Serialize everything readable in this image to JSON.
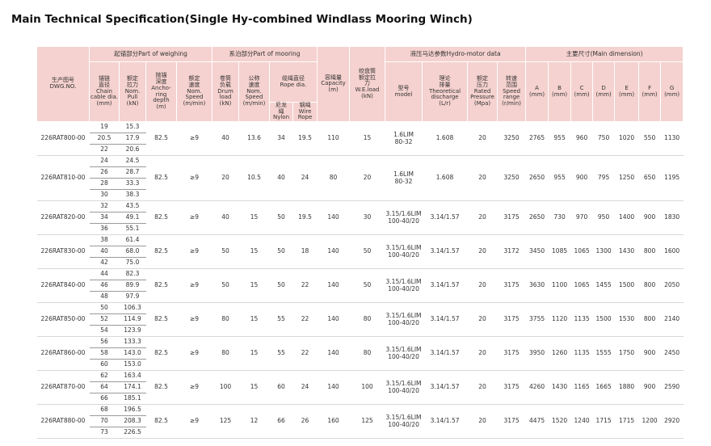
{
  "title": "Main Technical Specification(Single Hy-combined Windlass Mooring Winch)",
  "header": {
    "dwg": "生产图号\nDWG.NO.",
    "weighing": "起锚部分Part of weighing",
    "mooring": "系泊部分Part of mooring",
    "capacity": "容绳量\nCapacity\n(m)",
    "we_load": "绞盘筒\n额定拉\n力\nW.E.load\n(kN)",
    "hydro": "液压马达参数Hydro-motor data",
    "dimension": "主要尺寸(Main dimension)",
    "chain": "锚链\n直径\nChain\ncable dia.\n(mm)",
    "pull": "额定\n拉力\nNom.\nPull\n(kN)",
    "depth": "抛锚\n深度\nAncho-\nring\ndepth\n(m)",
    "w_speed": "额定\n速度\nNom.\nSpeed\n(m/min)",
    "drum": "卷筒\n负载\nDrum\nload\n(kN)",
    "m_speed": "公称\n速度\nNom.\nSpeed\n(m/min)",
    "rope": "缆绳直径\nRope dia.",
    "model": "型号\nmodel",
    "discharge": "理论\n排量\nTheoretical\ndischarge\n(L/r)",
    "pressure": "额定\n压力\nRated\nPressure\n(Mpa)",
    "speed_range": "转速\n范围\nSpeed\nrange\n(r/min)",
    "nylon": "尼龙\n绳\nNylon",
    "wire": "钢绳\nWire\nRope",
    "dims": [
      "A\n(mm)",
      "B\n(mm)",
      "C\n(mm)",
      "D\n(mm)",
      "E\n(mm)",
      "F\n(mm)",
      "G\n(mm)"
    ]
  },
  "rows": [
    {
      "dwg": "226RAT800-00",
      "chain": [
        "19",
        "20.5",
        "22"
      ],
      "pull": [
        "15.3",
        "17.9",
        "20.6"
      ],
      "cells": [
        "82.5",
        "≥9",
        "40",
        "13.6",
        "34",
        "19.5",
        "110",
        "15",
        "1.6LIM\n80-32",
        "1.608",
        "20",
        "3250",
        "2765",
        "955",
        "960",
        "750",
        "1020",
        "550",
        "1130"
      ]
    },
    {
      "dwg": "226RAT810-00",
      "chain": [
        "24",
        "26",
        "28",
        "30"
      ],
      "pull": [
        "24.5",
        "28.7",
        "33.3",
        "38.3"
      ],
      "cells": [
        "82.5",
        "≥9",
        "20",
        "10.5",
        "40",
        "24",
        "80",
        "20",
        "1.6LIM\n80-32",
        "1.608",
        "20",
        "3250",
        "2650",
        "955",
        "900",
        "795",
        "1250",
        "650",
        "1195"
      ]
    },
    {
      "dwg": "226RAT820-00",
      "chain": [
        "32",
        "34",
        "36"
      ],
      "pull": [
        "43.5",
        "49.1",
        "55.1"
      ],
      "cells": [
        "82.5",
        "≥9",
        "40",
        "15",
        "50",
        "19.5",
        "140",
        "30",
        "3.15/1.6LIM\n100-40/20",
        "3.14/1.57",
        "20",
        "3175",
        "2650",
        "730",
        "970",
        "950",
        "1400",
        "900",
        "1830"
      ]
    },
    {
      "dwg": "226RAT830-00",
      "chain": [
        "38",
        "40",
        "42"
      ],
      "pull": [
        "61.4",
        "68.0",
        "75.0"
      ],
      "cells": [
        "82.5",
        "≥9",
        "50",
        "15",
        "50",
        "18",
        "140",
        "50",
        "3.15/1.6LIM\n100-40/20",
        "3.14/1.57",
        "20",
        "3172",
        "3450",
        "1085",
        "1065",
        "1300",
        "1430",
        "800",
        "1600"
      ]
    },
    {
      "dwg": "226RAT840-00",
      "chain": [
        "44",
        "46",
        "48"
      ],
      "pull": [
        "82.3",
        "89.9",
        "97.9"
      ],
      "cells": [
        "82.5",
        "≥9",
        "50",
        "15",
        "50",
        "22",
        "140",
        "50",
        "3.15/1.6LIM\n100-40/20",
        "3.14/1.57",
        "20",
        "3175",
        "3630",
        "1100",
        "1065",
        "1455",
        "1500",
        "800",
        "2050"
      ]
    },
    {
      "dwg": "226RAT850-00",
      "chain": [
        "50",
        "52",
        "54"
      ],
      "pull": [
        "106.3",
        "114.9",
        "123.9"
      ],
      "cells": [
        "82.5",
        "≥9",
        "80",
        "15",
        "55",
        "22",
        "140",
        "80",
        "3.15/1.6LIM\n100-40/20",
        "3.14/1.57",
        "20",
        "3175",
        "3755",
        "1120",
        "1135",
        "1500",
        "1530",
        "800",
        "2140"
      ]
    },
    {
      "dwg": "226RAT860-00",
      "chain": [
        "56",
        "58",
        "60"
      ],
      "pull": [
        "133.3",
        "143.0",
        "153.0"
      ],
      "cells": [
        "82.5",
        "≥9",
        "80",
        "15",
        "55",
        "22",
        "140",
        "80",
        "3.15/1.6LIM\n100-40/20",
        "3.14/1.57",
        "20",
        "3175",
        "3950",
        "1260",
        "1135",
        "1555",
        "1750",
        "900",
        "2450"
      ]
    },
    {
      "dwg": "226RAT870-00",
      "chain": [
        "62",
        "64",
        "66"
      ],
      "pull": [
        "163.4",
        "174.1",
        "185.1"
      ],
      "cells": [
        "82.5",
        "≥9",
        "100",
        "15",
        "60",
        "24",
        "140",
        "100",
        "3.15/1.6LIM\n100-40/20",
        "3.14/1.57",
        "20",
        "3175",
        "4260",
        "1430",
        "1165",
        "1665",
        "1880",
        "900",
        "2590"
      ]
    },
    {
      "dwg": "226RAT880-00",
      "chain": [
        "68",
        "70",
        "73"
      ],
      "pull": [
        "196.5",
        "208.3",
        "226.5"
      ],
      "cells": [
        "82.5",
        "≥9",
        "125",
        "12",
        "66",
        "26",
        "160",
        "125",
        "3.15/1.6LIM\n100-40/20",
        "3.14/1.57",
        "20",
        "3175",
        "4475",
        "1520",
        "1240",
        "1715",
        "1715",
        "1200",
        "2920"
      ]
    }
  ]
}
